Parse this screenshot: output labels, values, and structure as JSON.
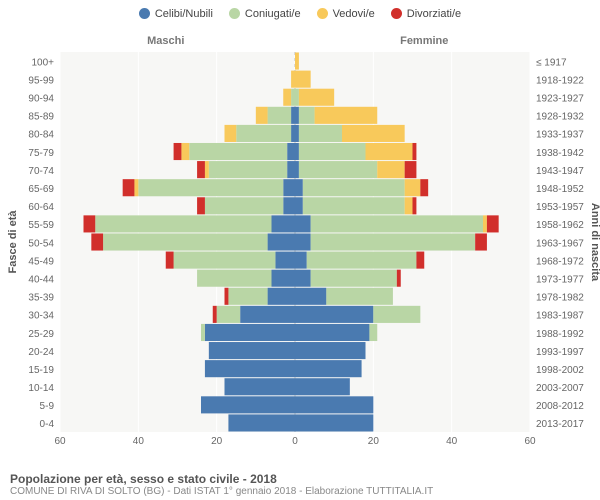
{
  "legend": [
    {
      "label": "Celibi/Nubili",
      "color": "#4a7ab0"
    },
    {
      "label": "Coniugati/e",
      "color": "#b9d6a5"
    },
    {
      "label": "Vedovi/e",
      "color": "#f8c95b"
    },
    {
      "label": "Divorziati/e",
      "color": "#d12f2b"
    }
  ],
  "sides": {
    "left": "Maschi",
    "right": "Femmine"
  },
  "axis": {
    "left_title": "Fasce di età",
    "right_title": "Anni di nascita",
    "x_ticks": [
      60,
      40,
      20,
      0,
      20,
      40,
      60
    ],
    "x_max": 60
  },
  "style": {
    "bg": "#ffffff",
    "plot_bg": "#f7f7f5",
    "grid_color": "#ffffff",
    "center_line": "#bfbfbf",
    "bar_gap": 1
  },
  "rows": [
    {
      "age": "0-4",
      "year": "2013-2017",
      "m": [
        17,
        0,
        0,
        0
      ],
      "f": [
        20,
        0,
        0,
        0
      ]
    },
    {
      "age": "5-9",
      "year": "2008-2012",
      "m": [
        24,
        0,
        0,
        0
      ],
      "f": [
        20,
        0,
        0,
        0
      ]
    },
    {
      "age": "10-14",
      "year": "2003-2007",
      "m": [
        18,
        0,
        0,
        0
      ],
      "f": [
        14,
        0,
        0,
        0
      ]
    },
    {
      "age": "15-19",
      "year": "1998-2002",
      "m": [
        23,
        0,
        0,
        0
      ],
      "f": [
        17,
        0,
        0,
        0
      ]
    },
    {
      "age": "20-24",
      "year": "1993-1997",
      "m": [
        22,
        0,
        0,
        0
      ],
      "f": [
        18,
        0,
        0,
        0
      ]
    },
    {
      "age": "25-29",
      "year": "1988-1992",
      "m": [
        23,
        1,
        0,
        0
      ],
      "f": [
        19,
        2,
        0,
        0
      ]
    },
    {
      "age": "30-34",
      "year": "1983-1987",
      "m": [
        14,
        6,
        0,
        1
      ],
      "f": [
        20,
        12,
        0,
        0
      ]
    },
    {
      "age": "35-39",
      "year": "1978-1982",
      "m": [
        7,
        10,
        0,
        1
      ],
      "f": [
        8,
        17,
        0,
        0
      ]
    },
    {
      "age": "40-44",
      "year": "1973-1977",
      "m": [
        6,
        19,
        0,
        0
      ],
      "f": [
        4,
        22,
        0,
        1
      ]
    },
    {
      "age": "45-49",
      "year": "1968-1972",
      "m": [
        5,
        26,
        0,
        2
      ],
      "f": [
        3,
        28,
        0,
        2
      ]
    },
    {
      "age": "50-54",
      "year": "1963-1967",
      "m": [
        7,
        42,
        0,
        3
      ],
      "f": [
        4,
        42,
        0,
        3
      ]
    },
    {
      "age": "55-59",
      "year": "1958-1962",
      "m": [
        6,
        45,
        0,
        3
      ],
      "f": [
        4,
        44,
        1,
        3
      ]
    },
    {
      "age": "60-64",
      "year": "1953-1957",
      "m": [
        3,
        20,
        0,
        2
      ],
      "f": [
        2,
        26,
        2,
        1
      ]
    },
    {
      "age": "65-69",
      "year": "1948-1952",
      "m": [
        3,
        37,
        1,
        3
      ],
      "f": [
        2,
        26,
        4,
        2
      ]
    },
    {
      "age": "70-74",
      "year": "1943-1947",
      "m": [
        2,
        20,
        1,
        2
      ],
      "f": [
        1,
        20,
        7,
        3
      ]
    },
    {
      "age": "75-79",
      "year": "1938-1942",
      "m": [
        2,
        25,
        2,
        2
      ],
      "f": [
        1,
        17,
        12,
        1
      ]
    },
    {
      "age": "80-84",
      "year": "1933-1937",
      "m": [
        1,
        14,
        3,
        0
      ],
      "f": [
        1,
        11,
        16,
        0
      ]
    },
    {
      "age": "85-89",
      "year": "1928-1932",
      "m": [
        1,
        6,
        3,
        0
      ],
      "f": [
        1,
        4,
        16,
        0
      ]
    },
    {
      "age": "90-94",
      "year": "1923-1927",
      "m": [
        0,
        1,
        2,
        0
      ],
      "f": [
        0,
        1,
        9,
        0
      ]
    },
    {
      "age": "95-99",
      "year": "1918-1922",
      "m": [
        0,
        0,
        1,
        0
      ],
      "f": [
        0,
        0,
        4,
        0
      ]
    },
    {
      "age": "100+",
      "year": "≤ 1917",
      "m": [
        0,
        0,
        0,
        0
      ],
      "f": [
        0,
        0,
        1,
        0
      ]
    }
  ],
  "footer": {
    "title": "Popolazione per età, sesso e stato civile - 2018",
    "source": "COMUNE DI RIVA DI SOLTO (BG) - Dati ISTAT 1° gennaio 2018 - Elaborazione TUTTITALIA.IT"
  }
}
